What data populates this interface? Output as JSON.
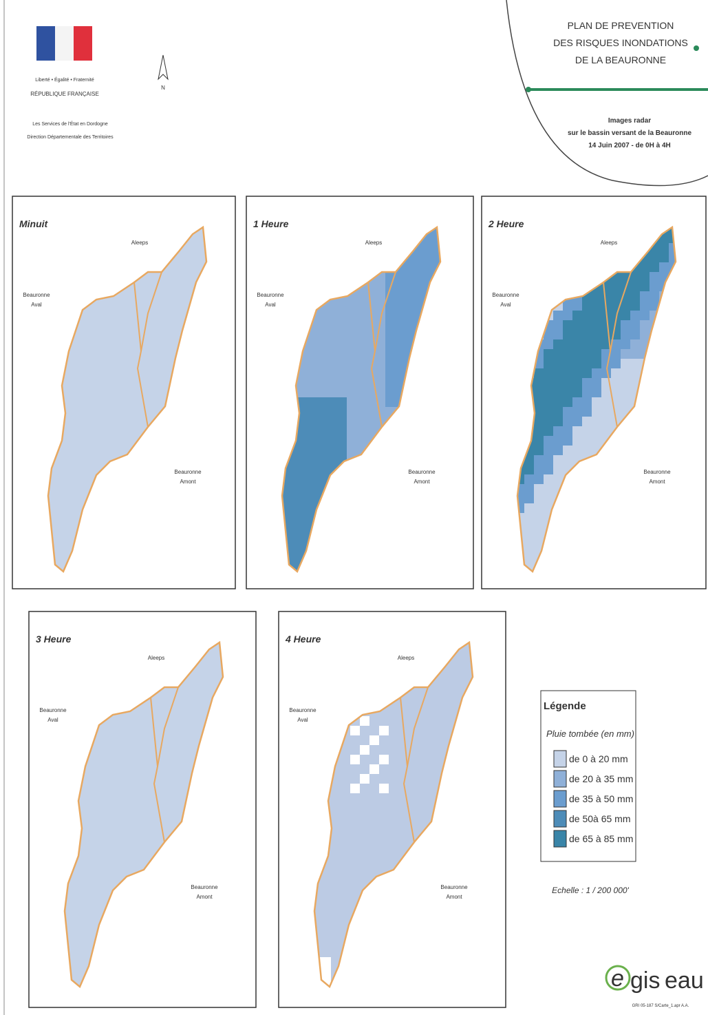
{
  "header": {
    "motto": "Liberté • Égalité • Fraternité",
    "republic": "RÉPUBLIQUE FRANÇAISE",
    "service": [
      "Les Services de l'État en Dordogne",
      "Direction Départementale des Territoires"
    ],
    "north": "N"
  },
  "title": {
    "lines": [
      "PLAN DE PREVENTION",
      "DES RISQUES INONDATIONS",
      "DE LA BEAURONNE"
    ],
    "subtitle": [
      "Images radar",
      "sur le bassin versant de la Beauronne",
      "14 Juin 2007 - de 0H à 4H"
    ]
  },
  "panels": [
    {
      "title": "Minuit",
      "north_label": "Aleeps",
      "aval": [
        "Beauronne",
        "Aval"
      ],
      "amont": [
        "Beauronne",
        "Amont"
      ]
    },
    {
      "title": "1 Heure",
      "north_label": "Aleeps",
      "aval": [
        "Beauronne",
        "Aval"
      ],
      "amont": [
        "Beauronne",
        "Amont"
      ]
    },
    {
      "title": "2 Heure",
      "north_label": "Aleeps",
      "aval": [
        "Beauronne",
        "Aval"
      ],
      "amont": [
        "Beauronne",
        "Amont"
      ]
    },
    {
      "title": "3 Heure",
      "north_label": "Aleeps",
      "aval": [
        "Beauronne",
        "Aval"
      ],
      "amont": [
        "Beauronne",
        "Amont"
      ]
    },
    {
      "title": "4 Heure",
      "north_label": "Aleeps",
      "aval": [
        "Beauronne",
        "Aval"
      ],
      "amont": [
        "Beauronne",
        "Amont"
      ]
    }
  ],
  "legend": {
    "title": "Légende",
    "subtitle": "Pluie tombée (en mm)",
    "items": [
      {
        "label": "de 0 à 20 mm",
        "color": "#c5d3e8"
      },
      {
        "label": "de 20 à 35 mm",
        "color": "#8fb0d8"
      },
      {
        "label": "de 35 à 50 mm",
        "color": "#6b9dcf"
      },
      {
        "label": "de 50à 65 mm",
        "color": "#4d8cb8"
      },
      {
        "label": "de 65 à 85 mm",
        "color": "#3a85a8"
      }
    ]
  },
  "scale": "Echelle : 1 / 200 000'",
  "logo": {
    "parts": [
      "e",
      "gis",
      "eau"
    ]
  },
  "footer": "GRI 05-187 S/Carte_1.apr A.A."
}
